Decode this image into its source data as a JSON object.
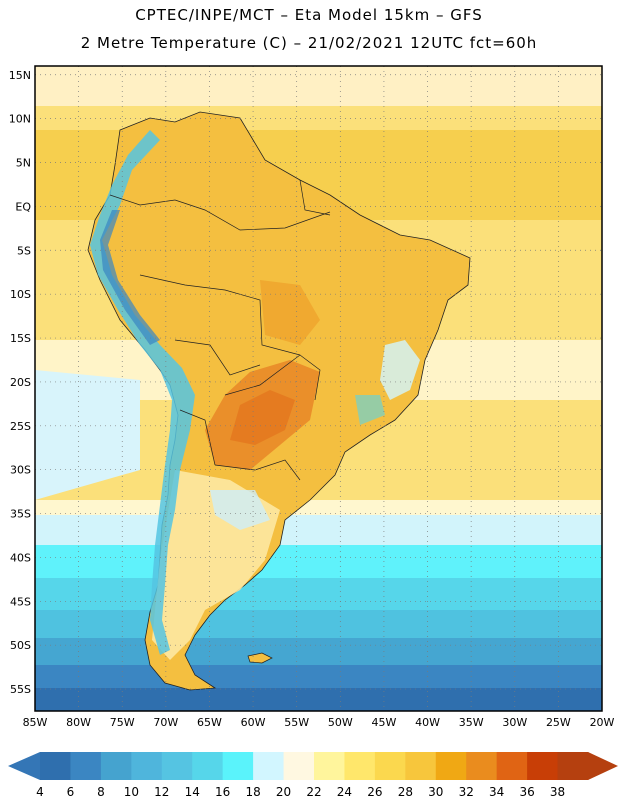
{
  "header": {
    "line1": "CPTEC/INPE/MCT –  Eta Model 15km – GFS",
    "line2": "2 Metre Temperature (C) – 21/02/2021 12UTC fct=60h"
  },
  "map": {
    "region": "South America",
    "lon_range": [
      -85,
      -20
    ],
    "lat_range": [
      -57.5,
      16
    ],
    "lat_labels": [
      "15N",
      "10N",
      "5N",
      "EQ",
      "5S",
      "10S",
      "15S",
      "20S",
      "25S",
      "30S",
      "35S",
      "40S",
      "45S",
      "50S",
      "55S"
    ],
    "lon_labels": [
      "85W",
      "80W",
      "75W",
      "70W",
      "65W",
      "60W",
      "55W",
      "50W",
      "45W",
      "40W",
      "35W",
      "30W",
      "25W",
      "20W"
    ]
  },
  "colorbar": {
    "labels": [
      "4",
      "6",
      "8",
      "10",
      "12",
      "14",
      "16",
      "18",
      "20",
      "22",
      "24",
      "26",
      "28",
      "30",
      "32",
      "34",
      "36",
      "38"
    ],
    "colors": [
      "#2f6fae",
      "#3b86c2",
      "#45a3cf",
      "#4fb5dc",
      "#55c4e2",
      "#56d6ea",
      "#5af3fb",
      "#d2f6ff",
      "#fff8e1",
      "#fff59c",
      "#ffe76b",
      "#fbd84e",
      "#f7c63c",
      "#f0a814",
      "#ea8c1e",
      "#e06414",
      "#c83e06",
      "#b5400f"
    ],
    "left_cap": "#3476b6",
    "right_cap": "#b5400f"
  },
  "colors": {
    "ocean_warm": "#fbe07a",
    "land_warm": "#f4bf40",
    "hot_core": "#e98a28",
    "andes_cold": "#55c4e2",
    "ocean_cool": "#5bdff0",
    "ocean_cold": "#2f6fae"
  }
}
